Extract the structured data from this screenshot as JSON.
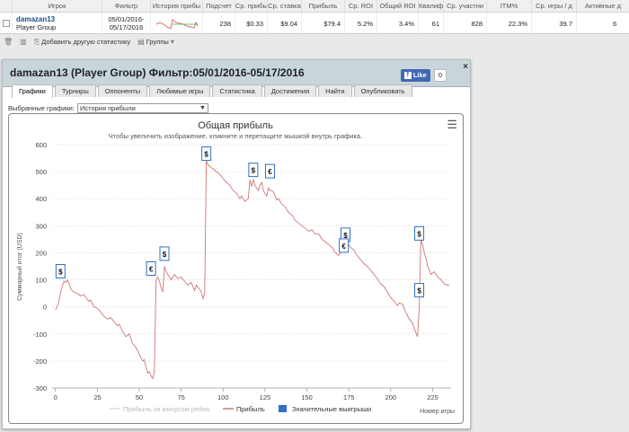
{
  "stats": {
    "headers": [
      "Игрок",
      "Фильтр",
      "История прибы",
      "Подсчет",
      "Ср. прибы",
      "Ср. ставка",
      "Прибыль",
      "Ср. ROI",
      "Общий ROI",
      "Квалиф",
      "Ср. участни",
      "ITM%",
      "Ср. игры / д",
      "Активные д"
    ],
    "row": {
      "player_name": "damazan13",
      "player_group": "Player Group",
      "filter_from": "05/01/2016-",
      "filter_to": "05/17/2016",
      "count": "238",
      "avg_profit": "$0.33",
      "avg_stake": "$9.04",
      "profit": "$79.4",
      "avg_roi": "5.2%",
      "total_roi": "3.4%",
      "qualif": "61",
      "avg_entrants": "828",
      "itm": "22.3%",
      "avg_games_day": "39.7",
      "active_days": "6"
    },
    "toolbar": {
      "add_stat": "Добавить другую статистику",
      "groups": "Группы"
    }
  },
  "window": {
    "title": "damazan13 (Player Group) Фильтр:05/01/2016-05/17/2016",
    "close": "×",
    "fb_like": "Like",
    "fb_count": "0",
    "tabs": [
      "Графики",
      "Турниры",
      "Оппоненты",
      "Любимые игры",
      "Статистика",
      "Достижения",
      "Найти",
      "Опубликовать"
    ],
    "selected_graphs_label": "Выбранные графики:",
    "selected_graph": "История прибыли"
  },
  "chart_data": {
    "type": "line",
    "title": "Общая прибыль",
    "subtitle": "Чтобы увеличить изображение, кликните и перетащите мышкой внутрь графика.",
    "ylabel": "Суммарный итог (USD)",
    "xlabel": "Номер игры",
    "ylim": [
      -300,
      600
    ],
    "xlim": [
      -2,
      236
    ],
    "xticks": [
      0,
      25,
      50,
      75,
      100,
      125,
      150,
      175,
      200,
      225
    ],
    "yticks": [
      600,
      500,
      400,
      300,
      200,
      100,
      0,
      -100,
      -200,
      -300
    ],
    "grid": true,
    "legend": [
      {
        "name": "Прибыль за минусом рейка",
        "color": "#dddddd",
        "kind": "line"
      },
      {
        "name": "Прибыль",
        "color": "#d07575",
        "kind": "line"
      },
      {
        "name": "Значительные выигрыши",
        "color": "#2f6fc4",
        "kind": "box"
      }
    ],
    "series": [
      {
        "name": "Прибыль",
        "color": "#d07575",
        "points": [
          [
            0,
            -10
          ],
          [
            1,
            0
          ],
          [
            2,
            20
          ],
          [
            3,
            50
          ],
          [
            4,
            75
          ],
          [
            5,
            95
          ],
          [
            6,
            90
          ],
          [
            7,
            100
          ],
          [
            8,
            90
          ],
          [
            9,
            70
          ],
          [
            10,
            60
          ],
          [
            11,
            55
          ],
          [
            13,
            50
          ],
          [
            15,
            40
          ],
          [
            17,
            45
          ],
          [
            18,
            35
          ],
          [
            20,
            20
          ],
          [
            21,
            25
          ],
          [
            23,
            0
          ],
          [
            25,
            -5
          ],
          [
            27,
            -20
          ],
          [
            29,
            -35
          ],
          [
            31,
            -45
          ],
          [
            33,
            -40
          ],
          [
            35,
            -55
          ],
          [
            37,
            -70
          ],
          [
            38,
            -65
          ],
          [
            40,
            -90
          ],
          [
            42,
            -110
          ],
          [
            44,
            -100
          ],
          [
            46,
            -135
          ],
          [
            48,
            -150
          ],
          [
            50,
            -175
          ],
          [
            52,
            -200
          ],
          [
            53,
            -195
          ],
          [
            54,
            -225
          ],
          [
            55,
            -245
          ],
          [
            56,
            -240
          ],
          [
            57,
            -255
          ],
          [
            58,
            -265
          ],
          [
            59,
            -240
          ],
          [
            60,
            100
          ],
          [
            61,
            110
          ],
          [
            62,
            95
          ],
          [
            63,
            70
          ],
          [
            64,
            55
          ],
          [
            65,
            150
          ],
          [
            66,
            130
          ],
          [
            67,
            120
          ],
          [
            69,
            100
          ],
          [
            71,
            120
          ],
          [
            73,
            105
          ],
          [
            75,
            110
          ],
          [
            77,
            95
          ],
          [
            79,
            80
          ],
          [
            81,
            90
          ],
          [
            83,
            60
          ],
          [
            84,
            80
          ],
          [
            86,
            65
          ],
          [
            87,
            55
          ],
          [
            88,
            30
          ],
          [
            89,
            50
          ],
          [
            90,
            540
          ],
          [
            91,
            525
          ],
          [
            92,
            520
          ],
          [
            94,
            510
          ],
          [
            96,
            500
          ],
          [
            98,
            490
          ],
          [
            100,
            475
          ],
          [
            102,
            460
          ],
          [
            104,
            450
          ],
          [
            106,
            430
          ],
          [
            108,
            420
          ],
          [
            110,
            400
          ],
          [
            111,
            410
          ],
          [
            113,
            390
          ],
          [
            115,
            400
          ],
          [
            116,
            470
          ],
          [
            117,
            445
          ],
          [
            118,
            470
          ],
          [
            119,
            450
          ],
          [
            120,
            440
          ],
          [
            121,
            430
          ],
          [
            122,
            450
          ],
          [
            123,
            460
          ],
          [
            124,
            430
          ],
          [
            125,
            420
          ],
          [
            126,
            410
          ],
          [
            127,
            440
          ],
          [
            128,
            430
          ],
          [
            129,
            430
          ],
          [
            130,
            425
          ],
          [
            131,
            410
          ],
          [
            132,
            395
          ],
          [
            133,
            400
          ],
          [
            135,
            380
          ],
          [
            137,
            370
          ],
          [
            139,
            350
          ],
          [
            141,
            340
          ],
          [
            143,
            320
          ],
          [
            145,
            310
          ],
          [
            147,
            300
          ],
          [
            149,
            290
          ],
          [
            151,
            280
          ],
          [
            153,
            285
          ],
          [
            155,
            270
          ],
          [
            157,
            270
          ],
          [
            159,
            250
          ],
          [
            161,
            240
          ],
          [
            163,
            230
          ],
          [
            165,
            220
          ],
          [
            167,
            200
          ],
          [
            169,
            190
          ],
          [
            170,
            200
          ],
          [
            171,
            210
          ],
          [
            172,
            240
          ],
          [
            173,
            225
          ],
          [
            174,
            240
          ],
          [
            176,
            220
          ],
          [
            178,
            210
          ],
          [
            180,
            190
          ],
          [
            182,
            175
          ],
          [
            184,
            160
          ],
          [
            186,
            150
          ],
          [
            188,
            135
          ],
          [
            190,
            120
          ],
          [
            192,
            105
          ],
          [
            194,
            85
          ],
          [
            196,
            75
          ],
          [
            198,
            55
          ],
          [
            200,
            35
          ],
          [
            202,
            20
          ],
          [
            204,
            5
          ],
          [
            205,
            15
          ],
          [
            207,
            10
          ],
          [
            209,
            -20
          ],
          [
            211,
            -45
          ],
          [
            213,
            -60
          ],
          [
            214,
            -80
          ],
          [
            215,
            -95
          ],
          [
            216,
            -110
          ],
          [
            217,
            0
          ],
          [
            218,
            250
          ],
          [
            219,
            230
          ],
          [
            220,
            200
          ],
          [
            221,
            180
          ],
          [
            222,
            150
          ],
          [
            224,
            120
          ],
          [
            226,
            130
          ],
          [
            228,
            110
          ],
          [
            230,
            100
          ],
          [
            232,
            85
          ],
          [
            234,
            80
          ],
          [
            235,
            82
          ]
        ]
      }
    ],
    "markers": [
      {
        "x": 3,
        "y": 130,
        "symbol": "$"
      },
      {
        "x": 57,
        "y": 140,
        "symbol": "€"
      },
      {
        "x": 65,
        "y": 195,
        "symbol": "$"
      },
      {
        "x": 90,
        "y": 565,
        "symbol": "$"
      },
      {
        "x": 118,
        "y": 505,
        "symbol": "$"
      },
      {
        "x": 128,
        "y": 500,
        "symbol": "€"
      },
      {
        "x": 173,
        "y": 265,
        "symbol": "$"
      },
      {
        "x": 172,
        "y": 225,
        "symbol": "€"
      },
      {
        "x": 217,
        "y": 270,
        "symbol": "$"
      },
      {
        "x": 217,
        "y": 60,
        "symbol": "$"
      }
    ]
  }
}
